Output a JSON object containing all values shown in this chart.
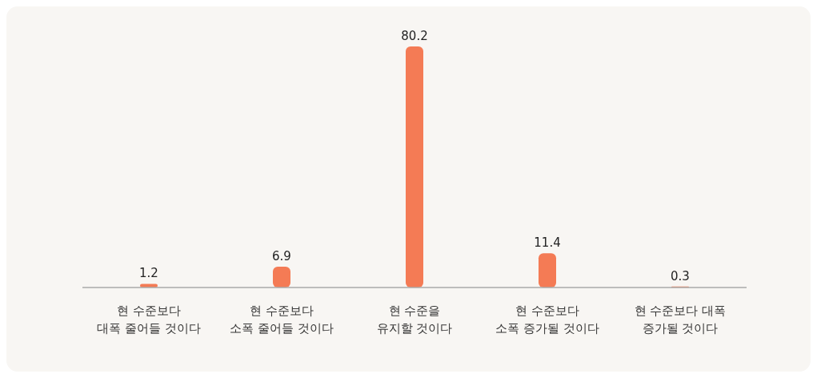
{
  "chart_data": {
    "type": "bar",
    "categories": [
      "현 수준보다\n대폭 줄어들 것이다",
      "현 수준보다\n소폭 줄어들 것이다",
      "현 수준을\n유지할 것이다",
      "현 수준보다\n소폭 증가될 것이다",
      "현 수준보다 대폭\n증가될 것이다"
    ],
    "values": [
      1.2,
      6.9,
      80.2,
      11.4,
      0.3
    ],
    "color": "#f47b55",
    "data_labels": true,
    "grid": false,
    "legend": false
  }
}
